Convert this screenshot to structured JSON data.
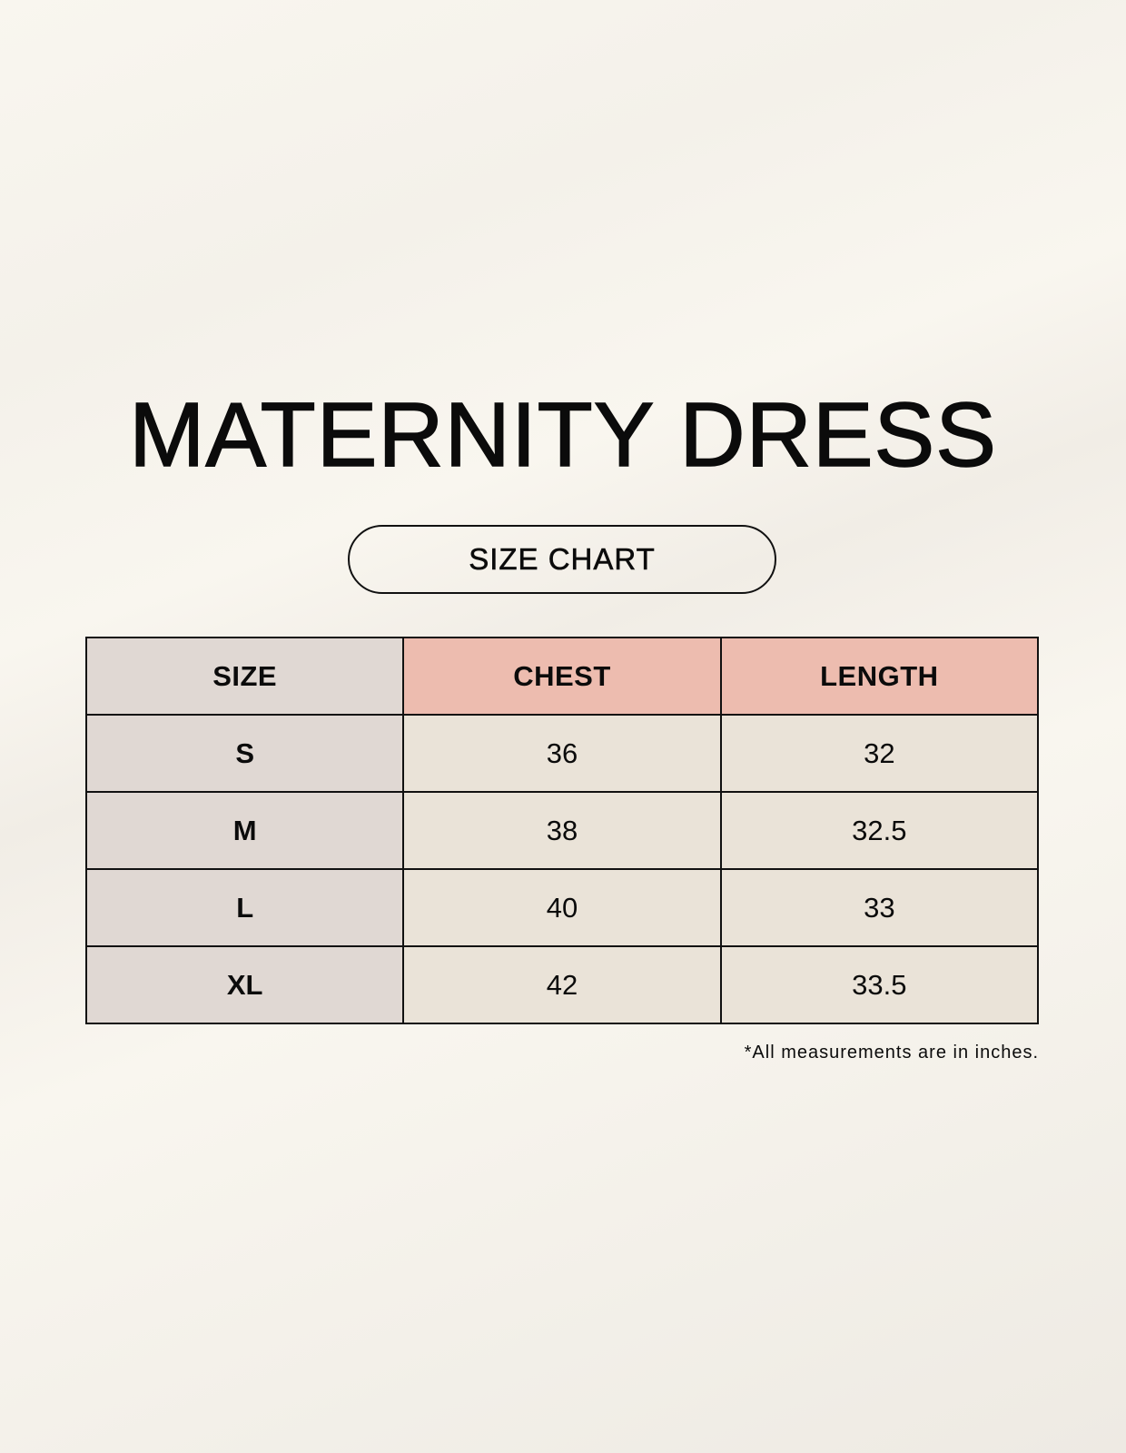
{
  "title": "MATERNITY DRESS",
  "subtitle": "SIZE CHART",
  "table": {
    "headers": [
      "SIZE",
      "CHEST",
      "LENGTH"
    ],
    "rows": [
      [
        "S",
        "36",
        "32"
      ],
      [
        "M",
        "38",
        "32.5"
      ],
      [
        "L",
        "40",
        "33"
      ],
      [
        "XL",
        "42",
        "33.5"
      ]
    ]
  },
  "footnote": "*All measurements are in inches.",
  "colors": {
    "size_column": "#e0d8d3",
    "header_accent": "#edbcaf",
    "cell": "#eae3d8"
  }
}
